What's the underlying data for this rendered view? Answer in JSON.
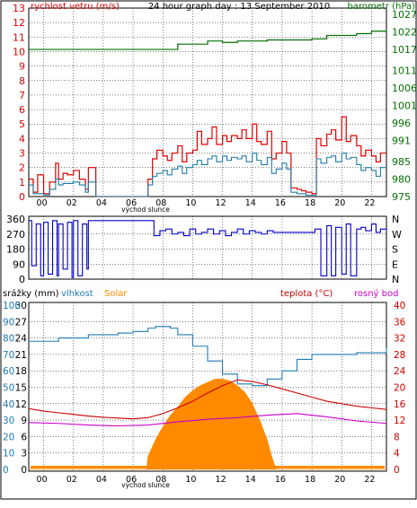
{
  "colors": {
    "wind": "#e00000",
    "gust": "#1e7aa8",
    "pressure": "#007000",
    "direction": "#0000c8",
    "humidity": "#1e7ab4",
    "temperature": "#c80000",
    "dewpoint": "#c800c8",
    "solar": "#ff8a00",
    "rain": "#ff8a00",
    "grid": "#000000"
  },
  "chart_data": [
    {
      "type": "line",
      "title": "24 hour graph day : 13 September 2010",
      "left_axis_label": "rychlost vetru (m/s)",
      "right_axis_label": "barometr (hPa)",
      "x_tick_labels": [
        "00",
        "02",
        "04",
        "06",
        "08",
        "10",
        "12",
        "14",
        "16",
        "18",
        "20",
        "22",
        ""
      ],
      "sunrise_label": "východ slunce",
      "left_ticks": [
        "0",
        "1",
        "2",
        "3",
        "4",
        "5",
        "6",
        "7",
        "8",
        "9",
        "10",
        "11",
        "12",
        "13"
      ],
      "right_ticks": [
        "975",
        "980",
        "985",
        "991",
        "996",
        "1001",
        "1006",
        "1011",
        "1017",
        "1022",
        "1027"
      ],
      "ylim_left": [
        0,
        13
      ],
      "series": [
        {
          "name": "wind_gust",
          "x": [
            0,
            0.3,
            0.6,
            1,
            1.4,
            1.8,
            2,
            2.3,
            2.6,
            3,
            3.4,
            3.8,
            4,
            4.5,
            5,
            5.5,
            6,
            6.5,
            7,
            7.5,
            8,
            8.3,
            8.6,
            9,
            9.3,
            9.6,
            10,
            10.3,
            10.6,
            11,
            11.3,
            11.6,
            12,
            12.3,
            12.6,
            13,
            13.3,
            13.6,
            14,
            14.3,
            14.6,
            15,
            15.3,
            15.6,
            16,
            16.3,
            16.6,
            17,
            17.3,
            17.6,
            18,
            18.3,
            18.6,
            19,
            19.3,
            19.6,
            20,
            20.3,
            20.6,
            21,
            21.3,
            21.6,
            22,
            22.3,
            22.6,
            23,
            23.3,
            23.6,
            24
          ],
          "values": [
            1.2,
            0.3,
            1.5,
            0.2,
            1.0,
            2.3,
            1.2,
            1.6,
            1.5,
            1.8,
            1.2,
            0.5,
            2.0,
            0,
            0,
            0,
            0,
            0,
            0,
            0,
            1.2,
            2.6,
            3.2,
            2.8,
            2.5,
            3.0,
            3.5,
            2.4,
            3.0,
            3.2,
            4.5,
            3.6,
            4.0,
            4.8,
            3.6,
            4.2,
            3.8,
            4.2,
            4.0,
            4.6,
            4.0,
            5.0,
            3.8,
            3.6,
            4.5,
            2.6,
            3.0,
            3.8,
            3.0,
            0.6,
            0.5,
            0.4,
            0.3,
            0.2,
            4.0,
            3.5,
            4.3,
            4.6,
            3.9,
            5.5,
            3.8,
            4.2,
            3.5,
            2.8,
            3.2,
            2.8,
            2.4,
            3.0,
            3.0
          ]
        },
        {
          "name": "wind_speed",
          "x": [
            0,
            0.3,
            0.6,
            1,
            1.4,
            1.8,
            2,
            2.3,
            2.6,
            3,
            3.4,
            3.8,
            4,
            4.5,
            5,
            5.5,
            6,
            6.5,
            7,
            7.5,
            8,
            8.3,
            8.6,
            9,
            9.3,
            9.6,
            10,
            10.3,
            10.6,
            11,
            11.3,
            11.6,
            12,
            12.3,
            12.6,
            13,
            13.3,
            13.6,
            14,
            14.3,
            14.6,
            15,
            15.3,
            15.6,
            16,
            16.3,
            16.6,
            17,
            17.3,
            17.6,
            18,
            18.3,
            18.6,
            19,
            19.3,
            19.6,
            20,
            20.3,
            20.6,
            21,
            21.3,
            21.6,
            22,
            22.3,
            22.6,
            23,
            23.3,
            23.6,
            24
          ],
          "values": [
            0.8,
            0.2,
            0.2,
            0.1,
            0.5,
            1.2,
            0.8,
            0.9,
            0.9,
            1.0,
            0.8,
            0.3,
            1.0,
            0,
            0,
            0,
            0,
            0,
            0,
            0,
            0.8,
            1.4,
            1.6,
            1.8,
            1.5,
            1.9,
            2.1,
            1.6,
            2.0,
            2.2,
            2.5,
            2.2,
            2.6,
            2.8,
            2.4,
            2.8,
            2.5,
            2.7,
            2.6,
            2.8,
            2.4,
            3.0,
            2.5,
            2.2,
            2.7,
            1.6,
            1.9,
            2.3,
            1.9,
            0.3,
            0.2,
            0.2,
            0.1,
            0.1,
            2.6,
            2.3,
            2.7,
            2.8,
            2.4,
            3.0,
            2.6,
            2.7,
            2.2,
            1.8,
            2.0,
            1.8,
            1.4,
            2.0,
            2.0
          ]
        },
        {
          "name": "pressure",
          "x": [
            0,
            3,
            6,
            8,
            9,
            10,
            11,
            12,
            13,
            14,
            15,
            16,
            17,
            18,
            19,
            20,
            21,
            22,
            23,
            24
          ],
          "values": [
            1017.0,
            1017.0,
            1017.0,
            1017.0,
            1017.0,
            1018.5,
            1018.5,
            1019.4,
            1019.0,
            1019.4,
            1019.4,
            1019.7,
            1019.7,
            1019.7,
            1020.0,
            1021.0,
            1021.0,
            1021.5,
            1022.2,
            1022.5
          ]
        }
      ]
    },
    {
      "type": "scatter",
      "left_ticks": [
        "0",
        "90",
        "180",
        "270",
        "360"
      ],
      "right_ticks": [
        "N",
        "W",
        "S",
        "E",
        "N"
      ],
      "ylim": [
        0,
        360
      ],
      "series": [
        {
          "name": "wind_direction",
          "x": [
            0,
            0.2,
            0.5,
            0.8,
            1.0,
            1.3,
            1.6,
            1.9,
            2.0,
            2.3,
            2.6,
            2.9,
            3.0,
            3.3,
            3.6,
            3.9,
            4.0,
            4.3,
            4.6,
            5.0,
            6.0,
            7.0,
            8.0,
            8.4,
            8.8,
            9.2,
            9.6,
            10.0,
            10.4,
            10.8,
            11.2,
            11.6,
            12.0,
            12.4,
            12.8,
            13.2,
            13.6,
            14.0,
            14.4,
            14.8,
            15.2,
            15.6,
            16.0,
            16.4,
            16.8,
            17.2,
            17.6,
            18.0,
            18.4,
            18.8,
            19.2,
            19.6,
            20.0,
            20.3,
            20.6,
            21.0,
            21.3,
            21.6,
            22.0,
            22.3,
            22.6,
            23.0,
            23.3,
            23.6,
            24.0
          ],
          "values": [
            350,
            80,
            330,
            20,
            340,
            30,
            350,
            20,
            330,
            60,
            340,
            10,
            350,
            20,
            330,
            60,
            350,
            350,
            350,
            350,
            350,
            350,
            350,
            260,
            290,
            300,
            270,
            280,
            260,
            300,
            270,
            280,
            300,
            270,
            290,
            260,
            280,
            300,
            270,
            290,
            280,
            270,
            290,
            280,
            280,
            280,
            280,
            280,
            280,
            280,
            300,
            20,
            320,
            20,
            310,
            30,
            330,
            20,
            300,
            310,
            290,
            330,
            280,
            300,
            290
          ]
        }
      ]
    },
    {
      "type": "line",
      "left_ticks_rain": [
        "0",
        "3",
        "6",
        "9",
        "12",
        "15",
        "18",
        "21",
        "24",
        "27",
        "30"
      ],
      "left_ticks_humidity": [
        "0",
        "10",
        "20",
        "30",
        "40",
        "50",
        "60",
        "70",
        "80",
        "90",
        "100"
      ],
      "right_ticks_temperature": [
        "0",
        "4",
        "8",
        "12",
        "16",
        "20",
        "24",
        "28",
        "32",
        "36",
        "40"
      ],
      "legend": [
        "srážky (mm)",
        "vlhkost",
        "Solar",
        "teplota (°C)",
        "rosný bod"
      ],
      "x_tick_labels": [
        "00",
        "02",
        "04",
        "06",
        "08",
        "10",
        "12",
        "14",
        "16",
        "18",
        "20",
        "22",
        ""
      ],
      "sunrise_label": "východ slunce",
      "series": [
        {
          "name": "humidity",
          "x": [
            0,
            2,
            4,
            6,
            7,
            8,
            8.5,
            9,
            9.5,
            10,
            11,
            12,
            13,
            14,
            15,
            16,
            17,
            18,
            19,
            20,
            21,
            22,
            23,
            24
          ],
          "values": [
            78,
            80,
            82,
            83,
            84,
            86,
            87,
            87,
            86,
            82,
            75,
            66,
            58,
            52,
            51,
            55,
            60,
            67,
            70,
            70,
            70,
            71,
            71,
            74
          ]
        },
        {
          "name": "temperature",
          "x": [
            0,
            1,
            2,
            3,
            4,
            5,
            6,
            7,
            8,
            9,
            10,
            11,
            12,
            13,
            14,
            15,
            16,
            17,
            18,
            19,
            20,
            21,
            22,
            23,
            24
          ],
          "values": [
            14.8,
            14.2,
            13.8,
            13.4,
            13.0,
            12.7,
            12.5,
            12.3,
            12.6,
            13.6,
            15.0,
            16.6,
            18.6,
            20.4,
            21.8,
            21.4,
            20.6,
            19.6,
            18.6,
            17.6,
            16.6,
            16.0,
            15.4,
            15.0,
            14.6
          ]
        },
        {
          "name": "dewpoint",
          "x": [
            0,
            2,
            4,
            6,
            8,
            10,
            12,
            14,
            16,
            18,
            20,
            22,
            24
          ],
          "values": [
            11.4,
            11.2,
            10.8,
            10.6,
            10.8,
            11.6,
            12.2,
            12.6,
            13.2,
            13.6,
            12.8,
            11.8,
            11.2
          ]
        },
        {
          "name": "solar",
          "x": [
            0,
            7.9,
            8.0,
            8.5,
            9,
            9.5,
            10,
            10.5,
            11,
            11.5,
            12,
            12.5,
            13,
            13.5,
            14,
            14.5,
            15,
            15.5,
            16,
            16.3,
            16.6,
            24
          ],
          "values": [
            0,
            0,
            8,
            18,
            26,
            33,
            38,
            44,
            48,
            51,
            53,
            55,
            55,
            54,
            51,
            47,
            40,
            30,
            18,
            8,
            0,
            0
          ]
        }
      ]
    }
  ]
}
